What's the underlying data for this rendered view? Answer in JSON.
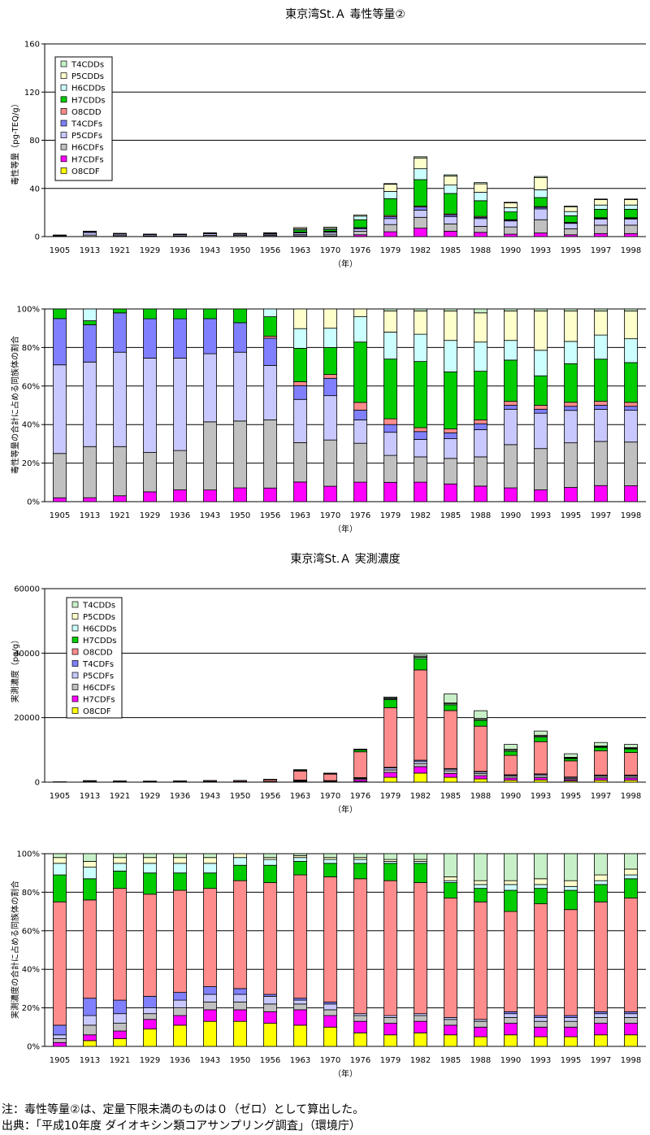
{
  "notes": {
    "line1": "注：毒性等量②は、定量下限未満のものは０（ゼロ）として算出した。",
    "line2": "出典：「平成10年度 ダイオキシン類コアサンプリング調査」（環境庁）"
  },
  "colors": {
    "T4CDDs": "#c8f0c8",
    "P5CDDs": "#ffffcc",
    "H6CDDs": "#ccffff",
    "H7CDDs": "#00cc00",
    "O8CDD": "#ff8c8c",
    "T4CDFs": "#8080ff",
    "P5CDFs": "#c8c8ff",
    "H6CDFs": "#c0c0c0",
    "H7CDFs": "#ff00ff",
    "O8CDF": "#ffff00",
    "dark_band": "#000000"
  },
  "chart_data": [
    {
      "type": "bar",
      "stacked": true,
      "title": "東京湾St.Ａ 毒性等量②",
      "xlabel": "（年）",
      "ylabel": "毒性等量（pg-TEQ/g）",
      "ylim": [
        0,
        160
      ],
      "yticks": [
        "0",
        "40",
        "80",
        "120",
        "160"
      ],
      "categories": [
        "1905",
        "1913",
        "1921",
        "1929",
        "1936",
        "1943",
        "1950",
        "1956",
        "1963",
        "1970",
        "1976",
        "1979",
        "1982",
        "1985",
        "1988",
        "1990",
        "1993",
        "1995",
        "1997",
        "1998"
      ],
      "legend": [
        "T4CDDs",
        "P5CDDs",
        "H6CDDs",
        "H7CDDs",
        "O8CDD",
        "T4CDFs",
        "P5CDFs",
        "H6CDFs",
        "H7CDFs",
        "O8CDF"
      ],
      "legend_position": "top-left",
      "grid": true,
      "series": [
        {
          "name": "O8CDF",
          "values": [
            0,
            0,
            0,
            0,
            0,
            0,
            0,
            0,
            0,
            0,
            0,
            0,
            0,
            0,
            0,
            0,
            0,
            0,
            0,
            0
          ]
        },
        {
          "name": "H7CDFs",
          "values": [
            0,
            0.1,
            0.1,
            0.1,
            0.1,
            0.1,
            0.1,
            0.2,
            0.6,
            0.5,
            1.5,
            4.0,
            7.0,
            4.5,
            3.5,
            2.0,
            3.0,
            1.5,
            2.5,
            2.5
          ]
        },
        {
          "name": "H6CDFs",
          "values": [
            0.3,
            1.2,
            0.7,
            0.5,
            0.5,
            1.0,
            0.9,
            0.8,
            1.0,
            1.5,
            3.0,
            6.0,
            9.0,
            6.0,
            5.0,
            6.0,
            11.0,
            5.0,
            7.0,
            7.0
          ]
        },
        {
          "name": "P5CDFs",
          "values": [
            0.6,
            2.0,
            1.3,
            1.0,
            1.0,
            1.3,
            1.0,
            1.0,
            1.4,
            1.6,
            2.0,
            5.0,
            6.0,
            6.0,
            6.5,
            5.0,
            9.0,
            4.5,
            5.0,
            5.0
          ]
        },
        {
          "name": "T4CDFs",
          "values": [
            0.3,
            0.8,
            0.5,
            0.4,
            0.4,
            0.6,
            0.5,
            0.6,
            0.6,
            0.6,
            0.8,
            1.5,
            2.5,
            1.5,
            1.0,
            0.7,
            1.3,
            0.5,
            0.7,
            0.7
          ]
        },
        {
          "name": "O8CDD",
          "values": [
            0,
            0,
            0,
            0,
            0,
            0,
            0,
            0,
            0.1,
            0.2,
            0.2,
            1.0,
            0.8,
            0.8,
            0.8,
            0.3,
            0.6,
            0.3,
            0.5,
            0.5
          ]
        },
        {
          "name": "H7CDDs",
          "values": [
            0.1,
            0.2,
            0.1,
            0.1,
            0.1,
            0.2,
            0.2,
            0.4,
            1.8,
            1.5,
            6.5,
            14,
            22,
            17,
            13,
            6.5,
            7.5,
            5.5,
            7.0,
            7.0
          ]
        },
        {
          "name": "H6CDDs",
          "values": [
            0,
            0.2,
            0,
            0,
            0,
            0,
            0,
            0.2,
            1.0,
            1.0,
            3.0,
            6.0,
            9.0,
            7.0,
            7.0,
            3.5,
            6.5,
            3.5,
            3.5,
            3.5
          ]
        },
        {
          "name": "P5CDDs",
          "values": [
            0,
            0,
            0,
            0,
            0,
            0,
            0,
            0,
            1.0,
            1.0,
            1.0,
            6.0,
            9.0,
            7.5,
            7.0,
            4.0,
            10.0,
            4.0,
            4.5,
            4.5
          ]
        },
        {
          "name": "T4CDDs",
          "values": [
            0,
            0,
            0,
            0,
            0,
            0,
            0,
            0,
            0,
            0,
            0,
            0.5,
            1.0,
            1.0,
            1.0,
            0.5,
            1.0,
            0.5,
            0.5,
            0.5
          ]
        }
      ]
    },
    {
      "type": "bar",
      "stacked": true,
      "percent": true,
      "xlabel": "（年）",
      "ylabel": "毒性等量の合計に占める同族体の割合",
      "ylim": [
        0,
        100
      ],
      "yticks": [
        "0%",
        "20%",
        "40%",
        "60%",
        "80%",
        "100%"
      ],
      "categories": [
        "1905",
        "1913",
        "1921",
        "1929",
        "1936",
        "1943",
        "1950",
        "1956",
        "1963",
        "1970",
        "1976",
        "1979",
        "1982",
        "1985",
        "1988",
        "1990",
        "1993",
        "1995",
        "1997",
        "1998"
      ],
      "grid": true,
      "series": [
        {
          "name": "O8CDF",
          "values": [
            0,
            0,
            0,
            0,
            0,
            0,
            0,
            0,
            0,
            0,
            0,
            0,
            0,
            0,
            0,
            0,
            0,
            0,
            0,
            0
          ]
        },
        {
          "name": "H7CDFs",
          "values": [
            2,
            2,
            3,
            5,
            6,
            6,
            7,
            7,
            10,
            8,
            10,
            10,
            10,
            9,
            8,
            7,
            6,
            7,
            8,
            8
          ]
        },
        {
          "name": "H6CDFs",
          "values": [
            23,
            26,
            25,
            20,
            20,
            35,
            34,
            35,
            20,
            24,
            20,
            14,
            13,
            13,
            15,
            22,
            21,
            22,
            22,
            22
          ]
        },
        {
          "name": "P5CDFs",
          "values": [
            46,
            43,
            48,
            48,
            47,
            35,
            35,
            28,
            22,
            23,
            12,
            12,
            9,
            10,
            14,
            18,
            18,
            16,
            16,
            16
          ]
        },
        {
          "name": "T4CDFs",
          "values": [
            24,
            19,
            20,
            20,
            20,
            18,
            15,
            14,
            7,
            9,
            5,
            4,
            4,
            3,
            3,
            2,
            2,
            2,
            2,
            2
          ]
        },
        {
          "name": "O8CDD",
          "values": [
            0,
            0,
            0,
            0,
            0,
            0,
            0,
            1,
            2,
            2,
            4,
            3,
            2,
            2,
            2,
            2,
            2,
            2,
            2,
            2
          ]
        },
        {
          "name": "H7CDDs",
          "values": [
            5,
            2,
            2,
            5,
            5,
            5,
            7,
            10,
            17,
            14,
            31,
            31,
            34,
            29,
            25,
            21,
            15,
            19,
            21,
            20
          ]
        },
        {
          "name": "H6CDDs",
          "values": [
            0,
            6,
            0,
            0,
            0,
            0,
            0,
            4,
            10,
            10,
            13,
            14,
            14,
            16,
            15,
            10,
            13,
            11,
            12,
            12
          ]
        },
        {
          "name": "P5CDDs",
          "values": [
            0,
            0,
            0,
            0,
            0,
            0,
            0,
            0,
            10,
            10,
            4,
            11,
            12,
            15,
            15,
            15,
            20,
            15,
            12,
            14
          ]
        },
        {
          "name": "T4CDDs",
          "values": [
            0,
            0,
            0,
            0,
            0,
            0,
            0,
            0,
            0,
            0,
            0,
            1,
            1,
            1,
            2,
            1,
            1,
            1,
            1,
            1
          ]
        }
      ]
    },
    {
      "type": "bar",
      "stacked": true,
      "title": "東京湾St.Ａ 実測濃度",
      "xlabel": "（年）",
      "ylabel": "実測濃度（pg/g）",
      "ylim": [
        0,
        60000
      ],
      "yticks": [
        "0",
        "20000",
        "40000",
        "60000"
      ],
      "categories": [
        "1905",
        "1913",
        "1921",
        "1929",
        "1936",
        "1943",
        "1950",
        "1956",
        "1963",
        "1970",
        "1976",
        "1979",
        "1982",
        "1985",
        "1988",
        "1990",
        "1993",
        "1995",
        "1997",
        "1998"
      ],
      "legend": [
        "T4CDDs",
        "P5CDDs",
        "H6CDDs",
        "H7CDDs",
        "O8CDD",
        "T4CDFs",
        "P5CDFs",
        "H6CDFs",
        "H7CDFs",
        "O8CDF"
      ],
      "legend_position": "top-left",
      "grid": true,
      "series": [
        {
          "name": "O8CDF",
          "values": [
            0,
            10,
            20,
            30,
            40,
            60,
            70,
            70,
            100,
            100,
            200,
            1500,
            2800,
            1500,
            1000,
            600,
            700,
            400,
            600,
            600
          ]
        },
        {
          "name": "H7CDFs",
          "values": [
            5,
            20,
            20,
            20,
            20,
            30,
            30,
            50,
            200,
            150,
            600,
            1500,
            2000,
            1200,
            1000,
            700,
            700,
            400,
            700,
            700
          ]
        },
        {
          "name": "H6CDFs",
          "values": [
            5,
            30,
            20,
            10,
            15,
            20,
            20,
            40,
            150,
            100,
            300,
            800,
            1000,
            800,
            700,
            600,
            600,
            400,
            500,
            500
          ]
        },
        {
          "name": "P5CDFs",
          "values": [
            5,
            30,
            20,
            10,
            15,
            20,
            20,
            40,
            150,
            100,
            200,
            600,
            700,
            500,
            500,
            300,
            400,
            300,
            300,
            300
          ]
        },
        {
          "name": "T4CDFs",
          "values": [
            5,
            40,
            15,
            10,
            10,
            20,
            10,
            20,
            50,
            30,
            100,
            200,
            300,
            200,
            150,
            100,
            150,
            100,
            100,
            100
          ]
        },
        {
          "name": "O8CDD",
          "values": [
            60,
            250,
            220,
            180,
            230,
            280,
            300,
            500,
            2800,
            2000,
            8000,
            18500,
            28000,
            18000,
            14000,
            6000,
            10000,
            5000,
            7500,
            7000
          ]
        },
        {
          "name": "H7CDDs",
          "values": [
            20,
            50,
            30,
            40,
            40,
            40,
            40,
            80,
            250,
            200,
            600,
            2500,
            3500,
            1800,
            1800,
            1300,
            1400,
            700,
            1100,
            1100
          ]
        },
        {
          "name": "H6CDDs",
          "values": [
            10,
            30,
            15,
            20,
            20,
            20,
            20,
            30,
            80,
            60,
            150,
            300,
            400,
            300,
            300,
            300,
            300,
            200,
            200,
            200
          ]
        },
        {
          "name": "P5CDDs",
          "values": [
            5,
            10,
            10,
            10,
            10,
            10,
            10,
            15,
            40,
            30,
            50,
            200,
            300,
            250,
            300,
            300,
            300,
            200,
            200,
            200
          ]
        },
        {
          "name": "T4CDDs",
          "values": [
            5,
            10,
            10,
            10,
            10,
            10,
            10,
            15,
            40,
            30,
            50,
            300,
            500,
            2800,
            2400,
            1500,
            1300,
            1100,
            1100,
            1000
          ]
        }
      ]
    },
    {
      "type": "bar",
      "stacked": true,
      "percent": true,
      "xlabel": "（年）",
      "ylabel": "実測濃度の合計に占める同族体の割合",
      "ylim": [
        0,
        100
      ],
      "yticks": [
        "0%",
        "20%",
        "40%",
        "60%",
        "80%",
        "100%"
      ],
      "categories": [
        "1905",
        "1913",
        "1921",
        "1929",
        "1936",
        "1943",
        "1950",
        "1956",
        "1963",
        "1970",
        "1976",
        "1979",
        "1982",
        "1985",
        "1988",
        "1990",
        "1993",
        "1995",
        "1997",
        "1998"
      ],
      "grid": true,
      "series": [
        {
          "name": "O8CDF",
          "values": [
            0,
            3,
            4,
            9,
            11,
            13,
            13,
            12,
            11,
            10,
            7,
            6,
            7,
            6,
            5,
            6,
            5,
            5,
            6,
            6
          ]
        },
        {
          "name": "H7CDFs",
          "values": [
            2,
            3,
            4,
            5,
            5,
            6,
            6,
            6,
            8,
            6,
            6,
            6,
            6,
            5,
            5,
            6,
            5,
            5,
            6,
            6
          ]
        },
        {
          "name": "H6CDFs",
          "values": [
            2,
            5,
            4,
            3,
            4,
            4,
            4,
            4,
            3,
            3,
            3,
            3,
            3,
            3,
            3,
            3,
            3,
            3,
            3,
            3
          ]
        },
        {
          "name": "P5CDFs",
          "values": [
            2,
            5,
            5,
            3,
            4,
            4,
            4,
            4,
            2,
            3,
            1,
            1,
            1,
            1,
            1,
            2,
            2,
            2,
            2,
            2
          ]
        },
        {
          "name": "T4CDFs",
          "values": [
            5,
            9,
            7,
            6,
            4,
            4,
            3,
            1,
            1,
            1,
            0,
            0,
            0,
            0,
            0,
            1,
            1,
            1,
            1,
            1
          ]
        },
        {
          "name": "O8CDD",
          "values": [
            64,
            51,
            58,
            53,
            53,
            51,
            56,
            58,
            64,
            65,
            70,
            70,
            68,
            62,
            61,
            52,
            58,
            55,
            57,
            59
          ]
        },
        {
          "name": "H7CDDs",
          "values": [
            14,
            11,
            9,
            11,
            9,
            8,
            8,
            9,
            7,
            7,
            8,
            9,
            10,
            8,
            7,
            11,
            8,
            10,
            9,
            10
          ]
        },
        {
          "name": "H6CDDs",
          "values": [
            6,
            6,
            4,
            5,
            5,
            5,
            4,
            3,
            2,
            2,
            2,
            1,
            1,
            1,
            2,
            3,
            2,
            2,
            2,
            2
          ]
        },
        {
          "name": "P5CDDs",
          "values": [
            3,
            3,
            3,
            3,
            3,
            3,
            2,
            1,
            1,
            1,
            1,
            1,
            1,
            2,
            2,
            2,
            3,
            3,
            3,
            3
          ]
        },
        {
          "name": "T4CDDs",
          "values": [
            2,
            4,
            2,
            2,
            2,
            2,
            0,
            2,
            1,
            2,
            2,
            3,
            3,
            12,
            14,
            14,
            13,
            14,
            11,
            8
          ]
        }
      ]
    }
  ]
}
